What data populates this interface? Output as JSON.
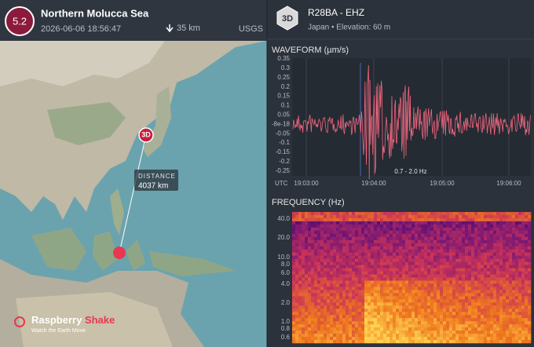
{
  "event": {
    "magnitude": "5.2",
    "region": "Northern Molucca Sea",
    "time": "2026-06-06 18:56:47",
    "depth": "35 km",
    "source": "USGS"
  },
  "station": {
    "badge": "3D",
    "name": "R28BA - EHZ",
    "location": "Japan • Elevation: 60 m"
  },
  "map": {
    "station_marker": "3D",
    "distance_label": "DISTANCE",
    "distance": "4037 km",
    "brand_first": "Raspberry",
    "brand_second": "Shake",
    "tagline": "Watch the Earth Move"
  },
  "waveform": {
    "title": "WAVEFORM (µm/s)",
    "yticks": [
      "0.35",
      "0.3",
      "0.25",
      "0.2",
      "0.15",
      "0.1",
      "0.05",
      "-8e-18",
      "-0.05",
      "-0.1",
      "-0.15",
      "-0.2",
      "-0.25"
    ],
    "xticks": [
      "UTC",
      "19:03:00",
      "19:04:00",
      "19:05:00",
      "19:06:00"
    ],
    "filter": "0.7 - 2.0 Hz"
  },
  "spectrogram": {
    "title": "FREQUENCY (Hz)",
    "yticks": [
      "40.0",
      "20.0",
      "10.0",
      "8.0",
      "6.0",
      "4.0",
      "2.0",
      "1.0",
      "0.8",
      "0.6"
    ]
  }
}
